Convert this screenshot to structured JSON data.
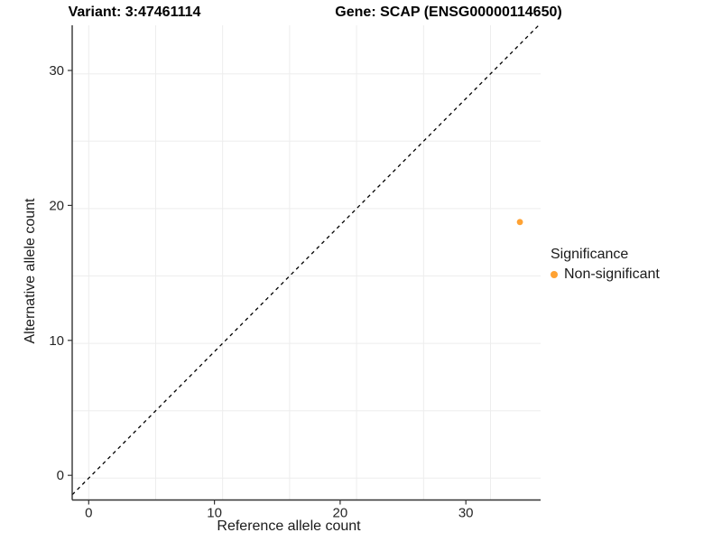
{
  "titles": {
    "variant": "Variant: 3:47461114",
    "gene": "Gene: SCAP (ENSG00000114650)"
  },
  "axes": {
    "x": {
      "label": "Reference allele count",
      "ticks": [
        0,
        10,
        20,
        30
      ]
    },
    "y": {
      "label": "Alternative allele count",
      "ticks": [
        0,
        10,
        20,
        30
      ]
    }
  },
  "legend": {
    "title": "Significance",
    "items": [
      {
        "label": "Non-significant",
        "color": "#FFA233"
      }
    ]
  },
  "colors": {
    "point": "#FFA233",
    "axis_line": "#333333",
    "tick_text": "#262626",
    "gridline": "#ededed",
    "reference_line": "#000000"
  },
  "chart_data": {
    "type": "scatter",
    "title": "Variant: 3:47461114  /  Gene: SCAP (ENSG00000114650)",
    "xlabel": "Reference allele count",
    "ylabel": "Alternative allele count",
    "xlim": [
      -1.2,
      33.7
    ],
    "ylim": [
      -1.6,
      33.6
    ],
    "x_ticks": [
      0,
      10,
      20,
      30
    ],
    "y_ticks": [
      0,
      10,
      20,
      30
    ],
    "grid": "on",
    "grid_interval": 5,
    "legend_position": "right",
    "series": [
      {
        "name": "Non-significant",
        "color": "#FFA233",
        "points": [
          {
            "x": 32,
            "y": 19
          }
        ]
      }
    ],
    "reference_line": {
      "kind": "diagonal y=x",
      "style": "dashed",
      "color": "#000000"
    }
  }
}
